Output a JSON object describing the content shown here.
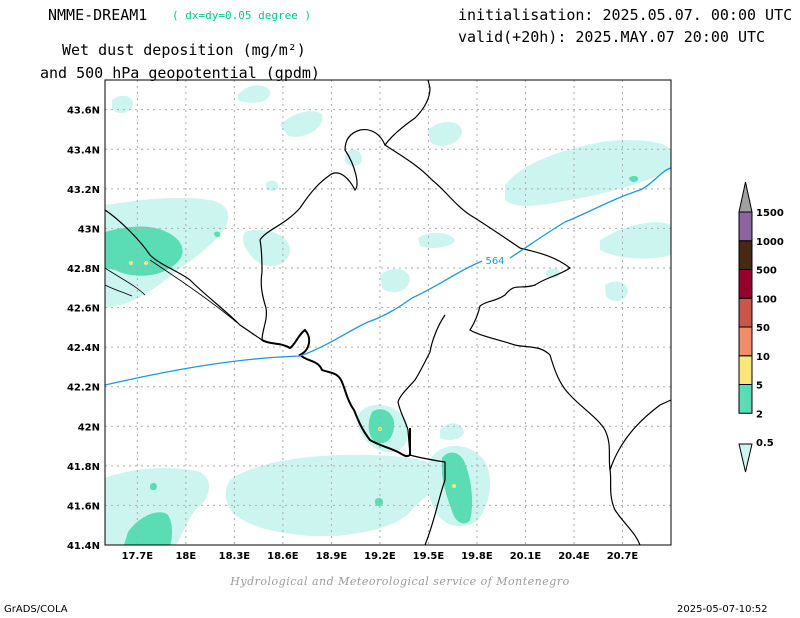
{
  "header": {
    "model": "NMME-DREAM1",
    "resolution": "( dx=dy=0.05 degree )",
    "title_line1": "Wet dust deposition (mg/m²)",
    "title_line2": "and 500 hPa geopotential (gpdm)",
    "initialisation": "initialisation: 2025.05.07. 00:00 UTC",
    "valid": "valid(+20h): 2025.MAY.07 20:00 UTC"
  },
  "map": {
    "lon_range": [
      17.5,
      21.0
    ],
    "lat_range": [
      41.4,
      43.75
    ],
    "lat_ticks": [
      "43.6N",
      "43.4N",
      "43.2N",
      "43N",
      "42.8N",
      "42.6N",
      "42.4N",
      "42.2N",
      "42N",
      "41.8N",
      "41.6N",
      "41.4N"
    ],
    "lat_values": [
      43.6,
      43.4,
      43.2,
      43.0,
      42.8,
      42.6,
      42.4,
      42.2,
      42.0,
      41.8,
      41.6,
      41.4
    ],
    "lon_ticks": [
      "17.7E",
      "18E",
      "18.3E",
      "18.6E",
      "18.9E",
      "19.2E",
      "19.5E",
      "19.8E",
      "20.1E",
      "20.4E",
      "20.7E"
    ],
    "lon_values": [
      17.7,
      18.0,
      18.3,
      18.6,
      18.9,
      19.2,
      19.5,
      19.8,
      20.1,
      20.4,
      20.7
    ],
    "contour_label": "564",
    "grid": true
  },
  "legend": {
    "labels": [
      "0.5",
      "2",
      "5",
      "10",
      "50",
      "100",
      "500",
      "1000",
      "1500"
    ],
    "colors": [
      "#cdf5ef",
      "#5adcb4",
      "#f8e678",
      "#f08c6a",
      "#c8564b",
      "#96002d",
      "#462814",
      "#8c64a0",
      "#a0a0a0"
    ]
  },
  "footer": {
    "credit": "Hydrological and Meteorological service of Montenegro",
    "software": "GrADS/COLA",
    "timestamp": "2025-05-07-10:52"
  },
  "colors": {
    "contour": "#1e96e6",
    "border": "#000000",
    "grid": "#aaaaaa",
    "resolution_text": "#00c88c"
  }
}
